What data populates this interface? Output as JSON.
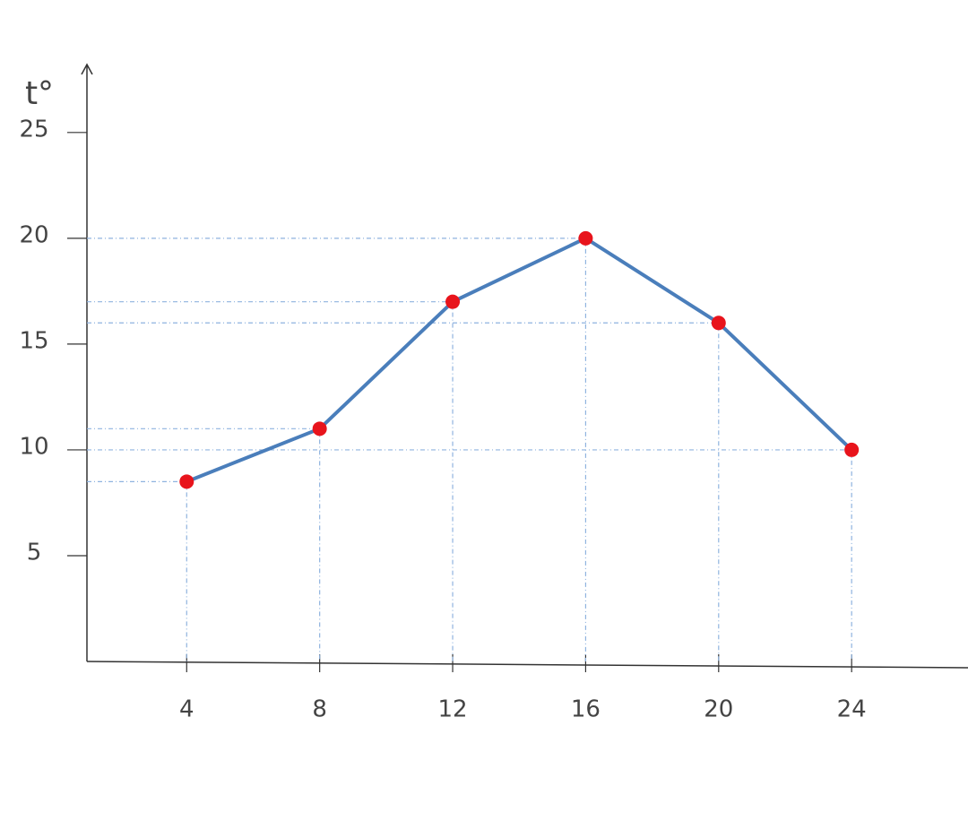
{
  "chart_data": {
    "type": "line",
    "y_label": "t°",
    "x": [
      4,
      8,
      12,
      16,
      20,
      24
    ],
    "series": [
      {
        "values": [
          8.5,
          11,
          17,
          20,
          16,
          10
        ],
        "color": "#4a7ebb",
        "marker_color": "#e8141c"
      }
    ],
    "xlim": [
      1,
      27.5
    ],
    "xticks": [
      4,
      8,
      12,
      16,
      20,
      24
    ],
    "ylim": [
      0,
      28
    ],
    "yticks": [
      5,
      10,
      15,
      20,
      25
    ],
    "guides": true
  }
}
